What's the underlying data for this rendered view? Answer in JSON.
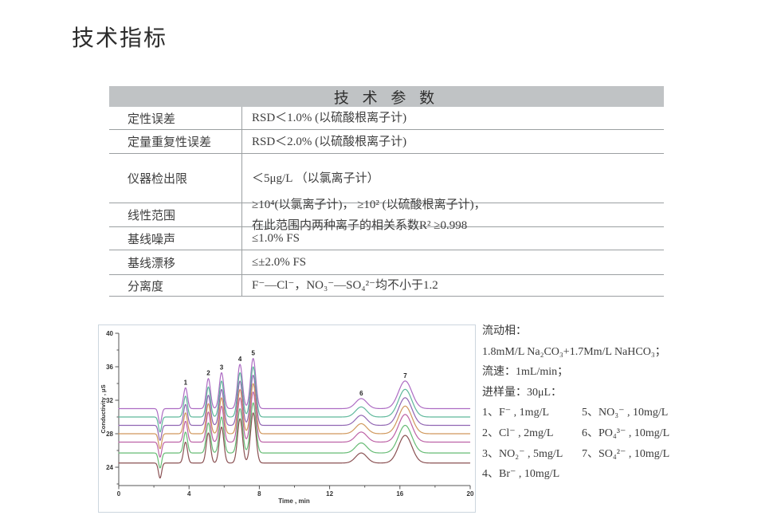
{
  "page_title": "技术指标",
  "table": {
    "header": "技 术 参 数",
    "rows": [
      {
        "label": "定性误差",
        "lines": [
          "RSD＜1.0% (以硫酸根离子计)"
        ]
      },
      {
        "label": "定量重复性误差",
        "lines": [
          "RSD＜2.0% (以硫酸根离子计)"
        ]
      },
      {
        "label": "仪器检出限",
        "lines": [
          "＜5μg/L （以氯离子计）"
        ]
      },
      {
        "label": "线性范围",
        "lines": [
          "≥10⁴(以氯离子计)， ≥10² (以硫酸根离子计)，",
          "在此范围内两种离子的相关系数R² ≥0.998"
        ]
      },
      {
        "label": "基线噪声",
        "lines": [
          "≤1.0% FS"
        ]
      },
      {
        "label": "基线漂移",
        "lines": [
          "≤±2.0% FS"
        ]
      },
      {
        "label": "分离度",
        "lines": [
          "F⁻—Cl⁻，NO₃⁻—SO₄²⁻均不小于1.2"
        ]
      }
    ]
  },
  "conditions": {
    "lines": [
      "流动相：",
      "1.8mM/L Na₂CO₃+1.7Mm/L NaHCO₃；",
      "流速：1mL/min；",
      "进样量：30μL："
    ],
    "analytes_col1": [
      "1、F⁻ , 1mg/L",
      "2、Cl⁻ , 2mg/L",
      "3、NO₂⁻ , 5mg/L",
      "4、Br⁻ , 10mg/L"
    ],
    "analytes_col2": [
      "5、NO₃⁻ , 10mg/L",
      "6、PO₄³⁻ , 10mg/L",
      "7、SO₄²⁻ , 10mg/L"
    ]
  },
  "chart_data": {
    "type": "line",
    "title": "",
    "xlabel": "Time , min",
    "ylabel": "Conductivity , μS",
    "xlim": [
      0,
      20
    ],
    "ylim": [
      21.8,
      40
    ],
    "grid": false,
    "x_major_ticks": [
      0,
      4,
      8,
      12,
      16,
      20
    ],
    "x_minor_ticks": [
      2,
      6,
      10,
      14,
      18
    ],
    "y_major_ticks": [
      24,
      28,
      32,
      36,
      40
    ],
    "y_minor_ticks": [
      22,
      26,
      30,
      34,
      38
    ],
    "peak_labels": [
      "1",
      "2",
      "3",
      "4",
      "5",
      "6",
      "7"
    ],
    "peak_centers_min": [
      3.8,
      5.1,
      5.85,
      6.9,
      7.65,
      13.8,
      16.3
    ],
    "peak_sigmas_min": [
      0.11,
      0.12,
      0.13,
      0.14,
      0.15,
      0.32,
      0.38
    ],
    "peak_heights_uS": [
      2.5,
      3.6,
      4.3,
      5.3,
      6.0,
      1.2,
      3.3
    ],
    "injection_dip": {
      "center_min": 2.35,
      "sigma_min": 0.09,
      "depth_uS": 1.8
    },
    "series": [
      {
        "name": "trace-1",
        "baseline_uS": 31.0,
        "color": "#ad6cc3"
      },
      {
        "name": "trace-2",
        "baseline_uS": 30.0,
        "color": "#5eb89b"
      },
      {
        "name": "trace-3",
        "baseline_uS": 29.0,
        "color": "#9166b3"
      },
      {
        "name": "trace-4",
        "baseline_uS": 28.0,
        "color": "#d0985c"
      },
      {
        "name": "trace-5",
        "baseline_uS": 27.0,
        "color": "#bd62a6"
      },
      {
        "name": "trace-6",
        "baseline_uS": 25.7,
        "color": "#66bb74"
      },
      {
        "name": "trace-7",
        "baseline_uS": 24.5,
        "color": "#8a5153"
      }
    ],
    "axis_color": "#555555",
    "tick_label_color": "#333333",
    "peak_label_color": "#222222"
  },
  "colors": {
    "table_header_bg": "#c0c3c5",
    "chart_border": "#ccd6de"
  }
}
